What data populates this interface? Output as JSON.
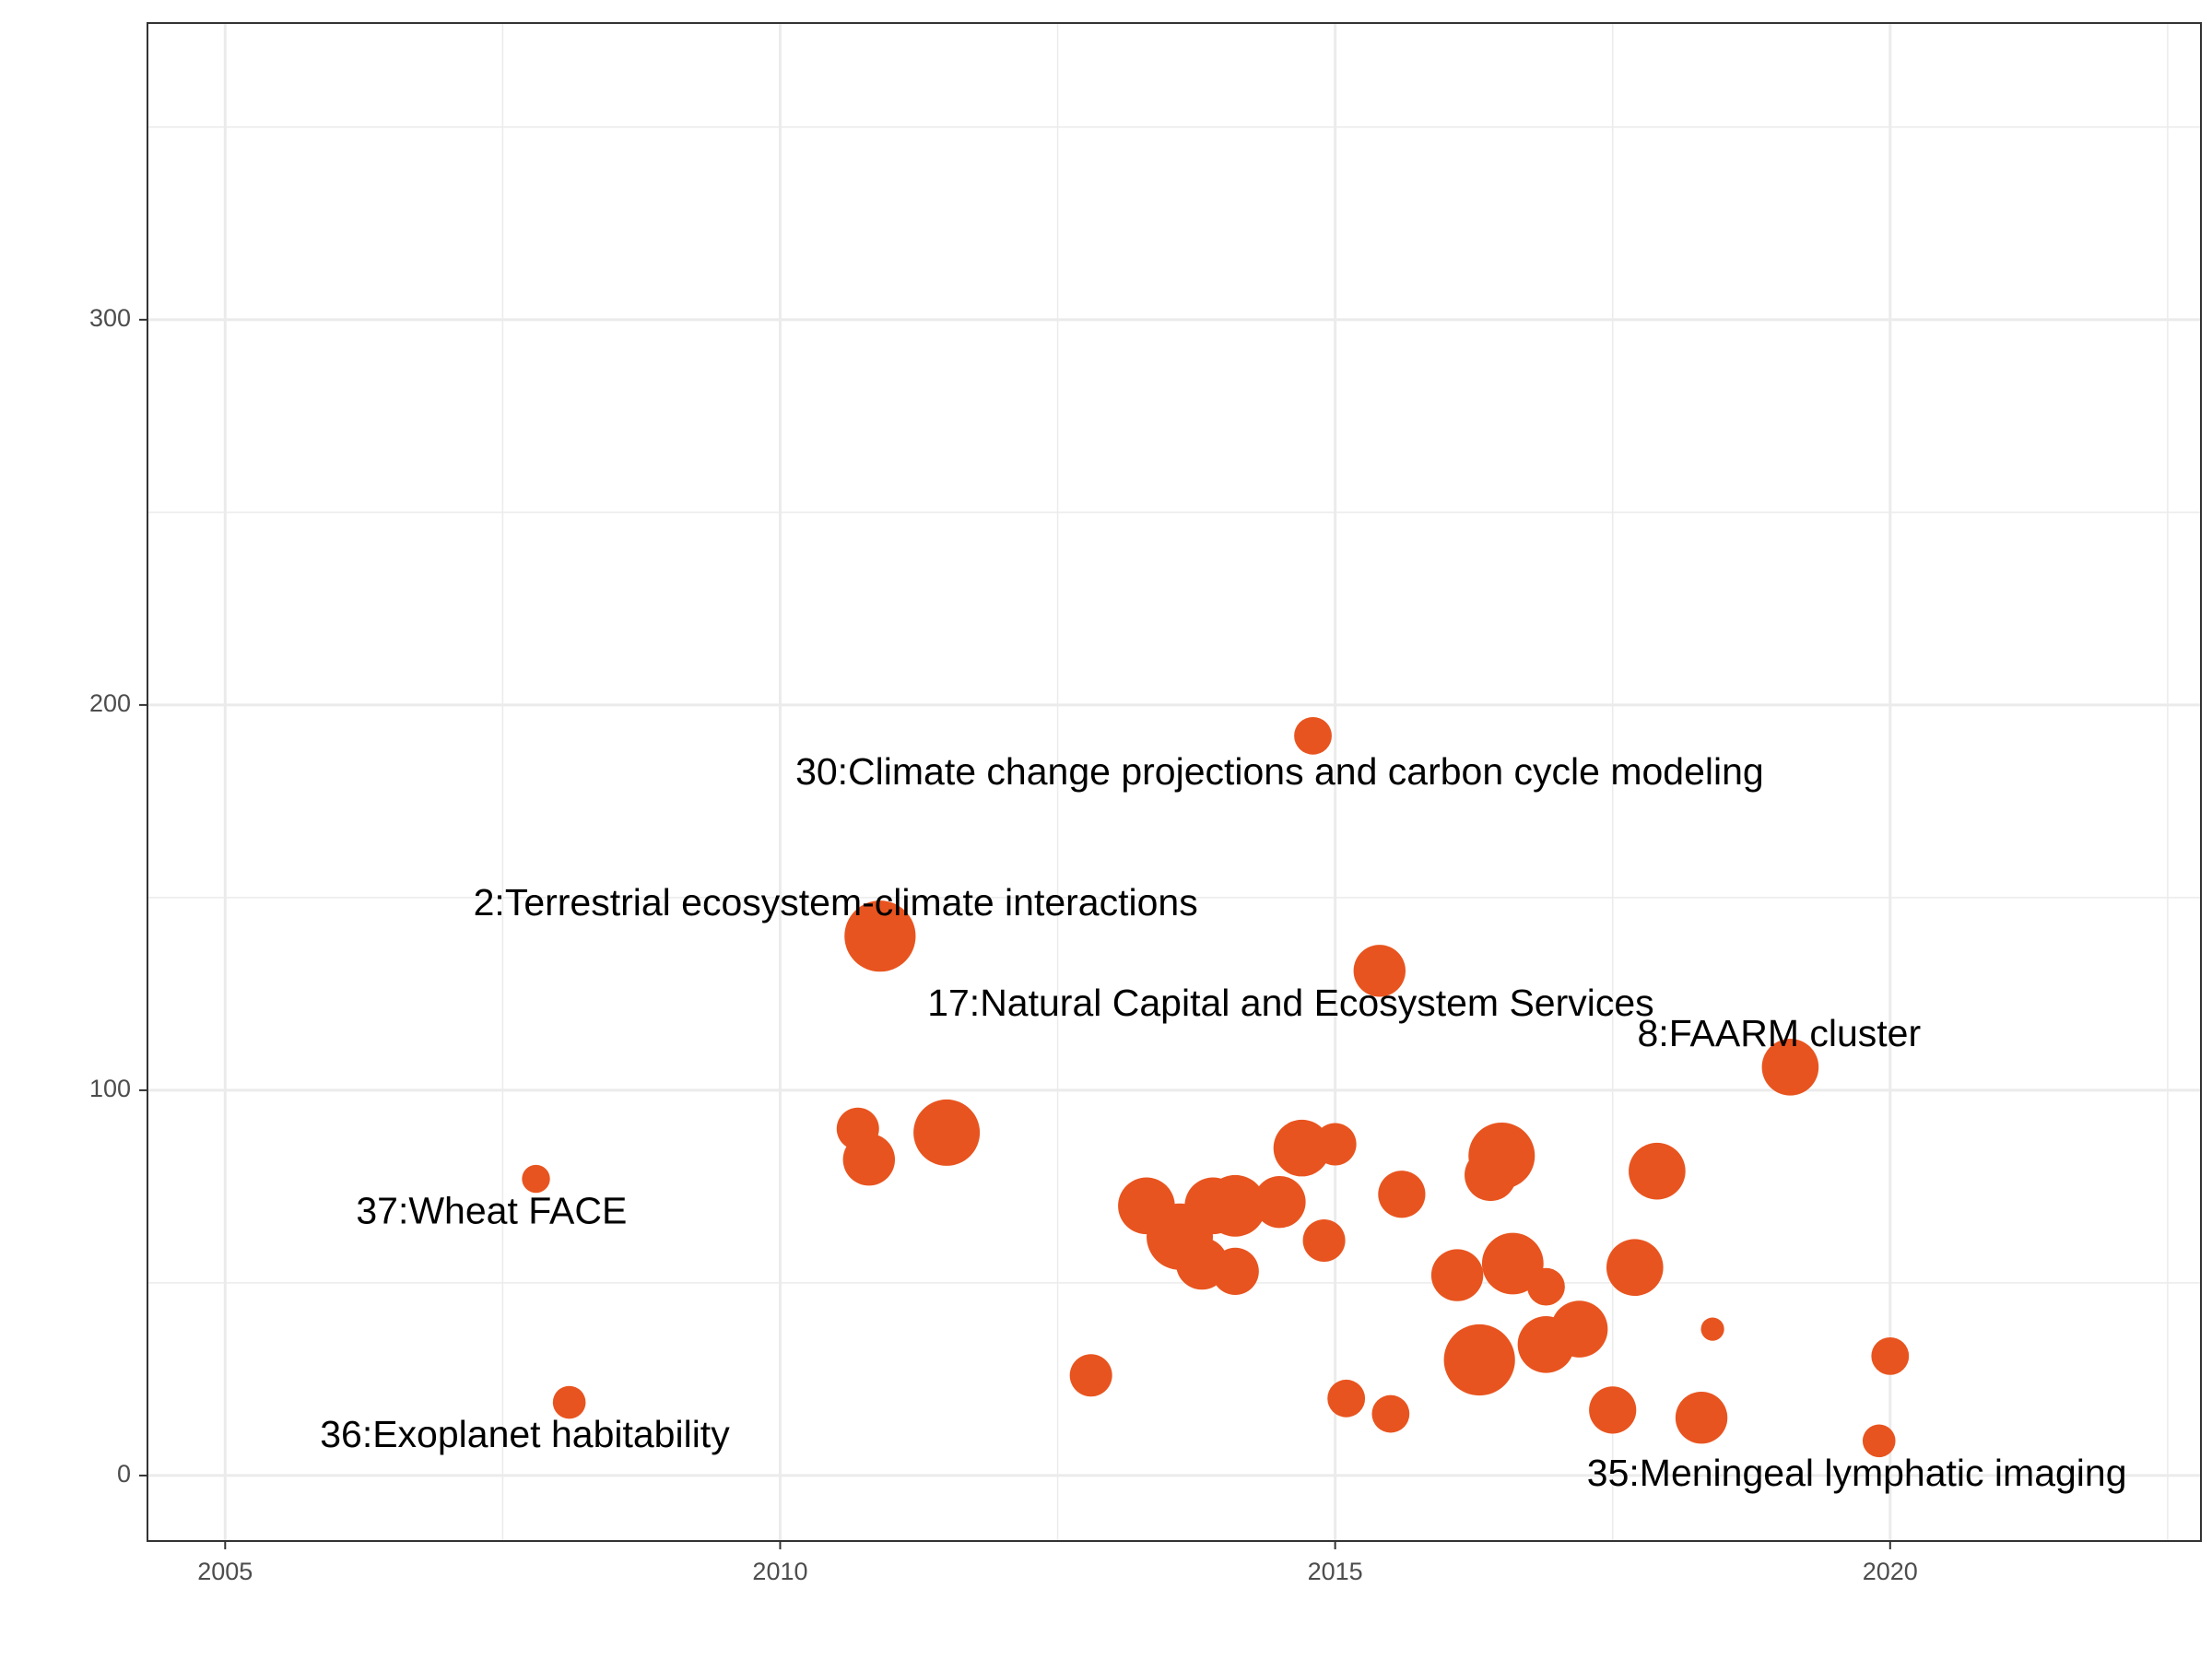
{
  "chart_data": {
    "type": "scatter",
    "title": "",
    "xlabel": "",
    "ylabel": "",
    "xlim": [
      2004.3,
      2022.8
    ],
    "ylim": [
      -17,
      377
    ],
    "x_ticks": [
      2005,
      2010,
      2015,
      2020
    ],
    "x_tick_labels": [
      "2005",
      "2010",
      "2015",
      "2020"
    ],
    "y_ticks": [
      0,
      100,
      200,
      300
    ],
    "y_tick_labels": [
      "0",
      "100",
      "200",
      "300"
    ],
    "grid": true,
    "legend": "none",
    "point_color": "#E8541F",
    "points": [
      {
        "x": 2007.8,
        "y": 77,
        "size": 2
      },
      {
        "x": 2008.1,
        "y": 19,
        "size": 3
      },
      {
        "x": 2010.7,
        "y": 90,
        "size": 5
      },
      {
        "x": 2010.8,
        "y": 82,
        "size": 7
      },
      {
        "x": 2010.9,
        "y": 140,
        "size": 11
      },
      {
        "x": 2011.5,
        "y": 89,
        "size": 10
      },
      {
        "x": 2012.8,
        "y": 26,
        "size": 5
      },
      {
        "x": 2013.3,
        "y": 70,
        "size": 8
      },
      {
        "x": 2013.6,
        "y": 62,
        "size": 10
      },
      {
        "x": 2013.8,
        "y": 55,
        "size": 7
      },
      {
        "x": 2013.9,
        "y": 70,
        "size": 8
      },
      {
        "x": 2014.1,
        "y": 70,
        "size": 9
      },
      {
        "x": 2014.1,
        "y": 53,
        "size": 6
      },
      {
        "x": 2014.5,
        "y": 71,
        "size": 7
      },
      {
        "x": 2014.7,
        "y": 85,
        "size": 8
      },
      {
        "x": 2014.8,
        "y": 192,
        "size": 4
      },
      {
        "x": 2014.9,
        "y": 61,
        "size": 5
      },
      {
        "x": 2015.0,
        "y": 86,
        "size": 5
      },
      {
        "x": 2015.1,
        "y": 20,
        "size": 4
      },
      {
        "x": 2015.4,
        "y": 131,
        "size": 7
      },
      {
        "x": 2015.5,
        "y": 16,
        "size": 4
      },
      {
        "x": 2015.6,
        "y": 73,
        "size": 6
      },
      {
        "x": 2016.1,
        "y": 52,
        "size": 7
      },
      {
        "x": 2016.3,
        "y": 30,
        "size": 11
      },
      {
        "x": 2016.4,
        "y": 78,
        "size": 7
      },
      {
        "x": 2016.5,
        "y": 83,
        "size": 10
      },
      {
        "x": 2016.6,
        "y": 55,
        "size": 9
      },
      {
        "x": 2016.9,
        "y": 34,
        "size": 8
      },
      {
        "x": 2016.9,
        "y": 49,
        "size": 4
      },
      {
        "x": 2017.2,
        "y": 38,
        "size": 8
      },
      {
        "x": 2017.5,
        "y": 17,
        "size": 6
      },
      {
        "x": 2017.7,
        "y": 54,
        "size": 8
      },
      {
        "x": 2017.9,
        "y": 79,
        "size": 8
      },
      {
        "x": 2018.3,
        "y": 15,
        "size": 7
      },
      {
        "x": 2018.4,
        "y": 38,
        "size": 1
      },
      {
        "x": 2019.1,
        "y": 106,
        "size": 8
      },
      {
        "x": 2019.9,
        "y": 9,
        "size": 3
      },
      {
        "x": 2020.0,
        "y": 31,
        "size": 4
      }
    ],
    "annotations": [
      {
        "text": "30:Climate change projections and carbon cycle modeling",
        "x": 2014.5,
        "y": 182
      },
      {
        "text": "2:Terrestrial ecosystem-climate interactions",
        "x": 2010.5,
        "y": 148
      },
      {
        "text": "17:Natural Capital and Ecosystem Services",
        "x": 2014.6,
        "y": 122
      },
      {
        "text": "8:FAARM cluster",
        "x": 2019.0,
        "y": 114
      },
      {
        "text": "37:Wheat FACE",
        "x": 2007.4,
        "y": 68
      },
      {
        "text": "36:Exoplanet habitability",
        "x": 2007.7,
        "y": 10
      },
      {
        "text": "35:Meningeal lymphatic imaging",
        "x": 2019.7,
        "y": 0
      }
    ]
  }
}
